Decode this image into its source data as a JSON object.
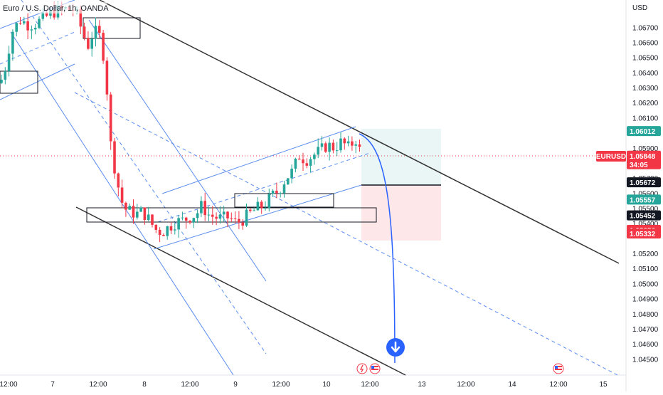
{
  "chart_data": {
    "type": "candlestick",
    "title": "Euro / U.S. Dollar, 1h, OANDA",
    "currency_label": "USD",
    "symbol": "EURUSD",
    "countdown": "34:05",
    "y_ticks": [
      "1.06700",
      "1.06600",
      "1.06500",
      "1.06400",
      "1.06300",
      "1.06200",
      "1.06100",
      "1.05900",
      "1.05700",
      "1.05600",
      "1.05500",
      "1.05400",
      "1.05200",
      "1.05100",
      "1.05000",
      "1.04900",
      "1.04800",
      "1.04700",
      "1.04600",
      "1.04500"
    ],
    "x_ticks": [
      "12:00",
      "7",
      "12:00",
      "8",
      "12:00",
      "9",
      "12:00",
      "10",
      "12:00",
      "13",
      "12:00",
      "14",
      "12:00",
      "15"
    ],
    "price_badges": [
      {
        "value": "1.06012",
        "color": "#26a69a"
      },
      {
        "value": "1.05848",
        "color": "#f23645"
      },
      {
        "value": "1.05672",
        "color": "#131722"
      },
      {
        "value": "1.05557",
        "color": "#26a69a"
      },
      {
        "value": "1.05452",
        "color": "#131722"
      },
      {
        "value": "1.05356",
        "color": "#f23645"
      },
      {
        "value": "1.05332",
        "color": "#f23645"
      }
    ],
    "colors": {
      "up": "#26a69a",
      "down": "#f23645",
      "line": "#5b8def",
      "channel": "#333333",
      "accent": "#2962ff"
    }
  }
}
